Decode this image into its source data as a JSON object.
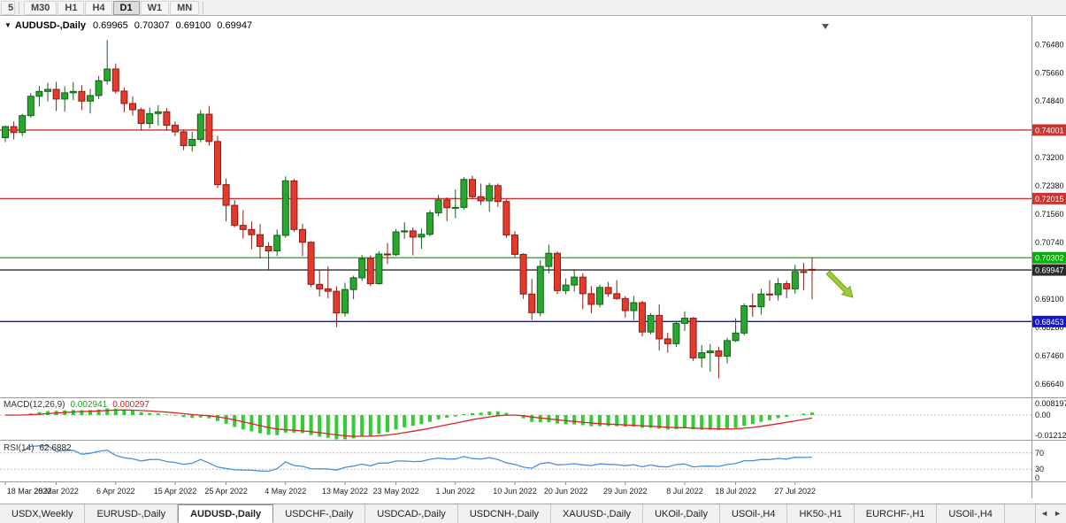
{
  "icons": {
    "collapse": "▼",
    "scroll_left": "◄",
    "scroll_right": "►"
  },
  "toolbar": {
    "partial_button": "5",
    "timeframes": [
      "M30",
      "H1",
      "H4",
      "D1",
      "W1",
      "MN"
    ],
    "active": "D1"
  },
  "chart": {
    "title_symbol": "AUDUSD-,Daily",
    "ohlc": {
      "open": "0.69965",
      "high": "0.70307",
      "low": "0.69100",
      "close": "0.69947"
    },
    "levels": [
      {
        "price": 0.74001,
        "color": "#cc3333",
        "label": "0.74001"
      },
      {
        "price": 0.72015,
        "color": "#cc3333",
        "label": "0.72015"
      },
      {
        "price": 0.70302,
        "color": "#00b300",
        "label": "0.70302"
      },
      {
        "price": 0.69947,
        "color": "#2a2a2a",
        "label": "0.69947"
      },
      {
        "price": 0.68453,
        "color": "#1414cc",
        "label": "0.68453"
      }
    ],
    "y_ticks": [
      "0.76480",
      "0.75660",
      "0.74840",
      "0.73200",
      "0.72380",
      "0.71560",
      "0.70740",
      "0.69100",
      "0.68280",
      "0.67460",
      "0.66640"
    ]
  },
  "macd": {
    "label": "MACD(12,26,9)",
    "value": "0.002941",
    "signal_value": "0.000297",
    "axis": [
      "0.008197",
      "0.00",
      "-0.01212"
    ],
    "params": {
      "fast": 12,
      "slow": 26,
      "signal": 9
    }
  },
  "rsi": {
    "label": "RSI(14)",
    "value": "62.6882",
    "period": 14,
    "levels": [
      70,
      30
    ],
    "axis": [
      "70",
      "30",
      "0"
    ]
  },
  "chart_data": {
    "type": "candlestick",
    "title": "AUDUSD-,Daily",
    "symbol": "AUDUSD",
    "timeframe": "Daily",
    "ylim": [
      0.6626,
      0.77
    ],
    "columns": [
      "date",
      "open",
      "high",
      "low",
      "close"
    ],
    "candles": [
      [
        "18 Mar",
        0.7378,
        0.7413,
        0.7365,
        0.741
      ],
      [
        "21 Mar",
        0.741,
        0.7425,
        0.7373,
        0.7393
      ],
      [
        "22 Mar",
        0.7393,
        0.7447,
        0.7383,
        0.7442
      ],
      [
        "23 Mar",
        0.7442,
        0.7507,
        0.7436,
        0.7498
      ],
      [
        "24 Mar",
        0.7498,
        0.7528,
        0.7468,
        0.7512
      ],
      [
        "25 Mar",
        0.7512,
        0.7537,
        0.7483,
        0.7518
      ],
      [
        "28 Mar",
        0.7518,
        0.754,
        0.7455,
        0.749
      ],
      [
        "29 Mar",
        0.749,
        0.7527,
        0.7453,
        0.7508
      ],
      [
        "30 Mar",
        0.7508,
        0.7539,
        0.7487,
        0.7512
      ],
      [
        "31 Mar",
        0.7512,
        0.753,
        0.7458,
        0.7484
      ],
      [
        "1 Apr",
        0.7484,
        0.7519,
        0.7448,
        0.75
      ],
      [
        "4 Apr",
        0.75,
        0.7557,
        0.749,
        0.7543
      ],
      [
        "5 Apr",
        0.7543,
        0.7661,
        0.7532,
        0.7577
      ],
      [
        "6 Apr",
        0.7577,
        0.7593,
        0.7506,
        0.7513
      ],
      [
        "7 Apr",
        0.7513,
        0.7524,
        0.7452,
        0.7477
      ],
      [
        "8 Apr",
        0.7477,
        0.7498,
        0.7442,
        0.7459
      ],
      [
        "11 Apr",
        0.7459,
        0.7465,
        0.7399,
        0.7419
      ],
      [
        "12 Apr",
        0.7419,
        0.7465,
        0.7405,
        0.7448
      ],
      [
        "13 Apr",
        0.7448,
        0.7472,
        0.7413,
        0.7453
      ],
      [
        "14 Apr",
        0.7453,
        0.7464,
        0.7398,
        0.7414
      ],
      [
        "15 Apr",
        0.7414,
        0.7425,
        0.7383,
        0.7395
      ],
      [
        "18 Apr",
        0.7395,
        0.7401,
        0.7342,
        0.7355
      ],
      [
        "19 Apr",
        0.7355,
        0.7395,
        0.7338,
        0.7373
      ],
      [
        "20 Apr",
        0.7373,
        0.7458,
        0.7365,
        0.7446
      ],
      [
        "21 Apr",
        0.7446,
        0.747,
        0.7355,
        0.7367
      ],
      [
        "22 Apr",
        0.7367,
        0.7383,
        0.7232,
        0.7242
      ],
      [
        "25 Apr",
        0.7242,
        0.726,
        0.7135,
        0.7182
      ],
      [
        "26 Apr",
        0.7182,
        0.7197,
        0.7118,
        0.7124
      ],
      [
        "27 Apr",
        0.7124,
        0.7168,
        0.7086,
        0.7112
      ],
      [
        "28 Apr",
        0.7112,
        0.7135,
        0.7055,
        0.7097
      ],
      [
        "29 Apr",
        0.7097,
        0.7128,
        0.7028,
        0.7063
      ],
      [
        "2 May",
        0.7063,
        0.7075,
        0.6995,
        0.705
      ],
      [
        "3 May",
        0.705,
        0.7112,
        0.7035,
        0.7095
      ],
      [
        "4 May",
        0.7095,
        0.7266,
        0.7088,
        0.7253
      ],
      [
        "5 May",
        0.7253,
        0.7258,
        0.7106,
        0.7112
      ],
      [
        "6 May",
        0.7112,
        0.7129,
        0.7035,
        0.7075
      ],
      [
        "9 May",
        0.7075,
        0.7078,
        0.6945,
        0.6953
      ],
      [
        "10 May",
        0.6953,
        0.6995,
        0.6918,
        0.694
      ],
      [
        "11 May",
        0.694,
        0.7005,
        0.6913,
        0.6933
      ],
      [
        "12 May",
        0.6933,
        0.6947,
        0.6829,
        0.687
      ],
      [
        "13 May",
        0.687,
        0.6958,
        0.686,
        0.6938
      ],
      [
        "16 May",
        0.6938,
        0.6978,
        0.691,
        0.6972
      ],
      [
        "17 May",
        0.6972,
        0.7038,
        0.6963,
        0.7028
      ],
      [
        "18 May",
        0.7028,
        0.7037,
        0.6948,
        0.6955
      ],
      [
        "19 May",
        0.6955,
        0.7049,
        0.6952,
        0.7041
      ],
      [
        "20 May",
        0.7041,
        0.7073,
        0.7012,
        0.7039
      ],
      [
        "23 May",
        0.7039,
        0.7113,
        0.7035,
        0.7105
      ],
      [
        "24 May",
        0.7105,
        0.7133,
        0.7085,
        0.7108
      ],
      [
        "25 May",
        0.7108,
        0.7118,
        0.7037,
        0.709
      ],
      [
        "26 May",
        0.709,
        0.7115,
        0.7056,
        0.7098
      ],
      [
        "27 May",
        0.7098,
        0.7168,
        0.7092,
        0.716
      ],
      [
        "30 May",
        0.716,
        0.7212,
        0.715,
        0.7198
      ],
      [
        "31 May",
        0.7198,
        0.7205,
        0.7136,
        0.7175
      ],
      [
        "1 Jun",
        0.7175,
        0.7228,
        0.7145,
        0.7176
      ],
      [
        "2 Jun",
        0.7176,
        0.7264,
        0.717,
        0.7257
      ],
      [
        "3 Jun",
        0.7257,
        0.7268,
        0.72,
        0.7207
      ],
      [
        "6 Jun",
        0.7207,
        0.7245,
        0.7183,
        0.7195
      ],
      [
        "7 Jun",
        0.7195,
        0.7247,
        0.7163,
        0.7239
      ],
      [
        "8 Jun",
        0.7239,
        0.7245,
        0.7178,
        0.7193
      ],
      [
        "9 Jun",
        0.7193,
        0.7199,
        0.7088,
        0.7096
      ],
      [
        "10 Jun",
        0.7096,
        0.7107,
        0.7032,
        0.704
      ],
      [
        "13 Jun",
        0.704,
        0.7043,
        0.6911,
        0.6925
      ],
      [
        "14 Jun",
        0.6925,
        0.6969,
        0.685,
        0.6871
      ],
      [
        "15 Jun",
        0.6871,
        0.7023,
        0.6861,
        0.7005
      ],
      [
        "16 Jun",
        0.7005,
        0.7068,
        0.6985,
        0.7043
      ],
      [
        "17 Jun",
        0.7043,
        0.7048,
        0.6925,
        0.6935
      ],
      [
        "20 Jun",
        0.6935,
        0.697,
        0.6924,
        0.6951
      ],
      [
        "21 Jun",
        0.6951,
        0.6997,
        0.6932,
        0.6974
      ],
      [
        "22 Jun",
        0.6974,
        0.6985,
        0.6881,
        0.6926
      ],
      [
        "23 Jun",
        0.6926,
        0.6948,
        0.6869,
        0.6895
      ],
      [
        "24 Jun",
        0.6895,
        0.6952,
        0.6887,
        0.6944
      ],
      [
        "27 Jun",
        0.6944,
        0.696,
        0.6917,
        0.6926
      ],
      [
        "28 Jun",
        0.6926,
        0.6965,
        0.6908,
        0.6912
      ],
      [
        "29 Jun",
        0.6912,
        0.6919,
        0.6857,
        0.6877
      ],
      [
        "30 Jun",
        0.6877,
        0.6919,
        0.685,
        0.69
      ],
      [
        "1 Jul",
        0.69,
        0.6905,
        0.6802,
        0.6815
      ],
      [
        "4 Jul",
        0.6815,
        0.687,
        0.6808,
        0.6863
      ],
      [
        "5 Jul",
        0.6863,
        0.6895,
        0.6762,
        0.6795
      ],
      [
        "6 Jul",
        0.6795,
        0.6813,
        0.6755,
        0.6781
      ],
      [
        "7 Jul",
        0.6781,
        0.6845,
        0.6772,
        0.684
      ],
      [
        "8 Jul",
        0.684,
        0.6875,
        0.6818,
        0.6855
      ],
      [
        "11 Jul",
        0.6855,
        0.6858,
        0.6731,
        0.674
      ],
      [
        "12 Jul",
        0.674,
        0.6777,
        0.6712,
        0.6755
      ],
      [
        "13 Jul",
        0.6755,
        0.678,
        0.67,
        0.676
      ],
      [
        "14 Jul",
        0.676,
        0.6773,
        0.6681,
        0.6745
      ],
      [
        "15 Jul",
        0.6745,
        0.6798,
        0.6724,
        0.679
      ],
      [
        "18 Jul",
        0.679,
        0.6855,
        0.6786,
        0.6812
      ],
      [
        "19 Jul",
        0.6812,
        0.6898,
        0.6805,
        0.6891
      ],
      [
        "20 Jul",
        0.6891,
        0.6927,
        0.6859,
        0.6888
      ],
      [
        "21 Jul",
        0.6888,
        0.694,
        0.6865,
        0.6925
      ],
      [
        "22 Jul",
        0.6925,
        0.6965,
        0.6905,
        0.6923
      ],
      [
        "25 Jul",
        0.6923,
        0.6971,
        0.6906,
        0.6955
      ],
      [
        "26 Jul",
        0.6955,
        0.6963,
        0.6913,
        0.694
      ],
      [
        "27 Jul",
        0.694,
        0.701,
        0.6925,
        0.699
      ],
      [
        "28 Jul",
        0.699,
        0.7015,
        0.6936,
        0.6988
      ],
      [
        "29 Jul",
        0.69965,
        0.70307,
        0.691,
        0.69947
      ]
    ],
    "x_labels": [
      [
        "18 Mar 2022",
        0
      ],
      [
        "28 Mar 2022",
        6
      ],
      [
        "6 Apr 2022",
        13
      ],
      [
        "15 Apr 2022",
        20
      ],
      [
        "25 Apr 2022",
        26
      ],
      [
        "4 May 2022",
        33
      ],
      [
        "13 May 2022",
        40
      ],
      [
        "23 May 2022",
        46
      ],
      [
        "1 Jun 2022",
        53
      ],
      [
        "10 Jun 2022",
        60
      ],
      [
        "20 Jun 2022",
        66
      ],
      [
        "29 Jun 2022",
        73
      ],
      [
        "8 Jul 2022",
        80
      ],
      [
        "18 Jul 2022",
        86
      ],
      [
        "27 Jul 2022",
        93
      ]
    ]
  },
  "tabs": {
    "items": [
      {
        "label": "USDX,Weekly",
        "active": false
      },
      {
        "label": "EURUSD-,Daily",
        "active": false
      },
      {
        "label": "AUDUSD-,Daily",
        "active": true
      },
      {
        "label": "USDCHF-,Daily",
        "active": false
      },
      {
        "label": "USDCAD-,Daily",
        "active": false
      },
      {
        "label": "USDCNH-,Daily",
        "active": false
      },
      {
        "label": "XAUUSD-,Daily",
        "active": false
      },
      {
        "label": "UKOil-,Daily",
        "active": false
      },
      {
        "label": "USOil-,H4",
        "active": false
      },
      {
        "label": "HK50-,H1",
        "active": false
      },
      {
        "label": "EURCHF-,H1",
        "active": false
      },
      {
        "label": "USOil-,H4",
        "active": false
      }
    ]
  },
  "colors": {
    "up": "#2aa62e",
    "up_border": "#11611a",
    "down": "#e23a2c",
    "down_border": "#8c1b11",
    "macd_hist": "#33cc33",
    "macd_signal": "#dd2222",
    "rsi_line": "#4a90d9",
    "arrow": "#9acd32",
    "axis_text": "#111111"
  }
}
